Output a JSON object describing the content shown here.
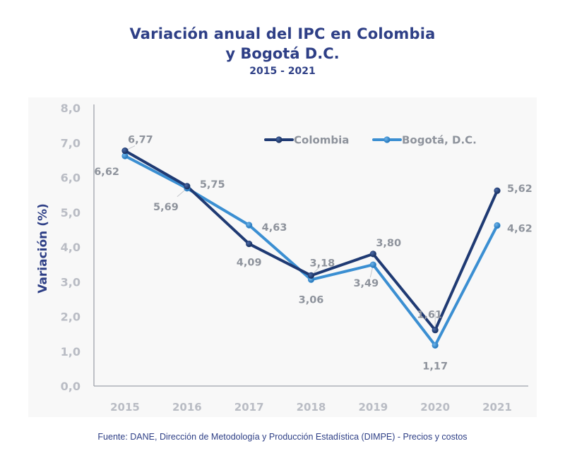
{
  "header": {
    "title_line1": "Variación anual del IPC en Colombia",
    "title_line2": "y Bogotá D.C.",
    "subtitle": "2015 - 2021"
  },
  "footer": {
    "source": "Fuente: DANE, Dirección de Metodología y Producción Estadística (DIMPE) - Precios y costos"
  },
  "colors": {
    "colombia": "#1f3a73",
    "bogota": "#3b8fd2",
    "title": "#2e3f86",
    "tick_label": "#b9bcc4",
    "data_label": "#8e939c",
    "axis": "#9fa3ab",
    "panel_bg": "#f8f8f8"
  },
  "chart_data": {
    "type": "line",
    "title": "Variación anual del IPC en Colombia y Bogotá D.C.",
    "subtitle": "2015 - 2021",
    "xlabel": "",
    "ylabel": "Variación (%)",
    "categories": [
      "2015",
      "2016",
      "2017",
      "2018",
      "2019",
      "2020",
      "2021"
    ],
    "ylim": [
      0,
      8
    ],
    "yticks": [
      0,
      1,
      2,
      3,
      4,
      5,
      6,
      7,
      8
    ],
    "ytick_labels": [
      "0,0",
      "1,0",
      "2,0",
      "3,0",
      "4,0",
      "5,0",
      "6,0",
      "7,0",
      "8,0"
    ],
    "grid": false,
    "legend_position": "top-right",
    "series": [
      {
        "name": "Colombia",
        "values": [
          6.77,
          5.75,
          4.09,
          3.18,
          3.8,
          1.61,
          5.62
        ],
        "labels": [
          "6,77",
          "5,75",
          "4,09",
          "3,18",
          "3,80",
          "1,61",
          "5,62"
        ]
      },
      {
        "name": "Bogotá, D.C.",
        "values": [
          6.62,
          5.69,
          4.63,
          3.06,
          3.49,
          1.17,
          4.62
        ],
        "labels": [
          "6,62",
          "5,69",
          "4,63",
          "3,06",
          "3,49",
          "1,17",
          "4,62"
        ]
      }
    ]
  }
}
